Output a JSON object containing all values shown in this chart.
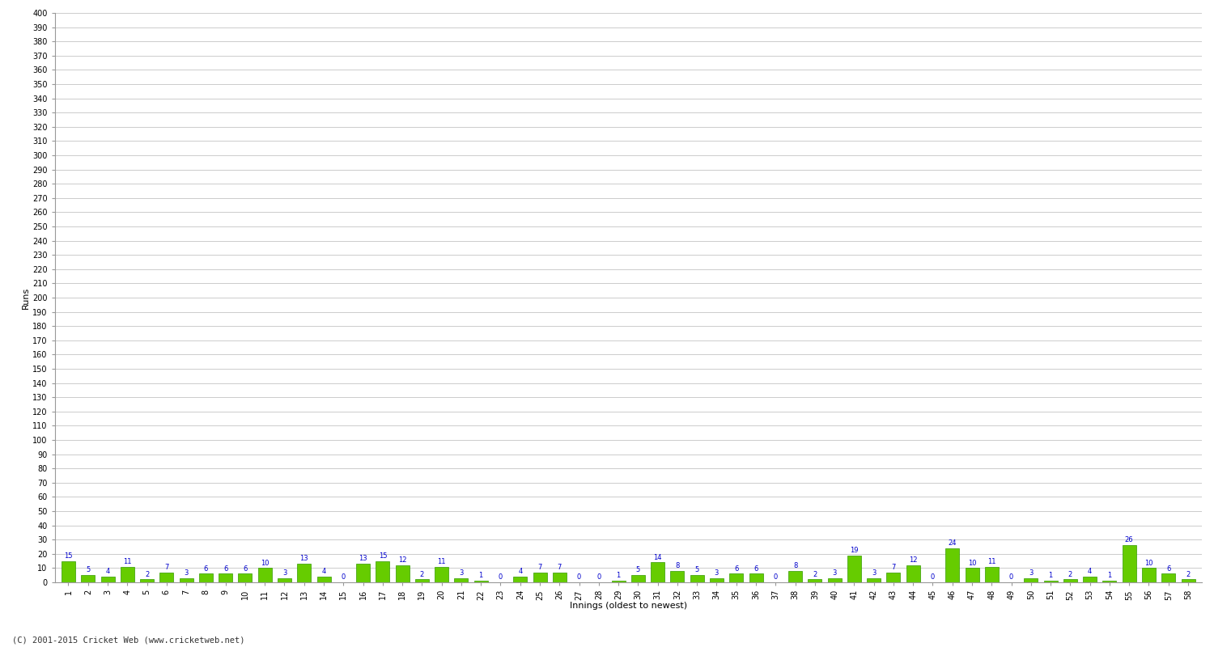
{
  "title": "",
  "xlabel": "Innings (oldest to newest)",
  "ylabel": "Runs",
  "bar_color": "#66cc00",
  "bar_edge_color": "#339900",
  "label_color": "#0000cc",
  "background_color": "#ffffff",
  "grid_color": "#cccccc",
  "ylim": [
    0,
    400
  ],
  "yticks": [
    0,
    10,
    20,
    30,
    40,
    50,
    60,
    70,
    80,
    90,
    100,
    110,
    120,
    130,
    140,
    150,
    160,
    170,
    180,
    190,
    200,
    210,
    220,
    230,
    240,
    250,
    260,
    270,
    280,
    290,
    300,
    310,
    320,
    330,
    340,
    350,
    360,
    370,
    380,
    390,
    400
  ],
  "innings": [
    1,
    2,
    3,
    4,
    5,
    6,
    7,
    8,
    9,
    10,
    11,
    12,
    13,
    14,
    15,
    16,
    17,
    18,
    19,
    20,
    21,
    22,
    23,
    24,
    25,
    26,
    27,
    28,
    29,
    30,
    31,
    32,
    33,
    34,
    35,
    36,
    37,
    38,
    39,
    40,
    41,
    42,
    43,
    44,
    45,
    46,
    47,
    48,
    49,
    50,
    51,
    52,
    53,
    54,
    55,
    56,
    57,
    58
  ],
  "scores": [
    15,
    5,
    4,
    11,
    2,
    7,
    3,
    6,
    6,
    6,
    10,
    3,
    13,
    4,
    0,
    13,
    15,
    12,
    2,
    11,
    3,
    1,
    0,
    4,
    7,
    7,
    0,
    0,
    1,
    5,
    14,
    8,
    5,
    3,
    6,
    6,
    0,
    8,
    2,
    3,
    19,
    3,
    7,
    12,
    0,
    24,
    10,
    11,
    0,
    3,
    1,
    2,
    4,
    1,
    26,
    10,
    6,
    2
  ],
  "footnote": "(C) 2001-2015 Cricket Web (www.cricketweb.net)"
}
